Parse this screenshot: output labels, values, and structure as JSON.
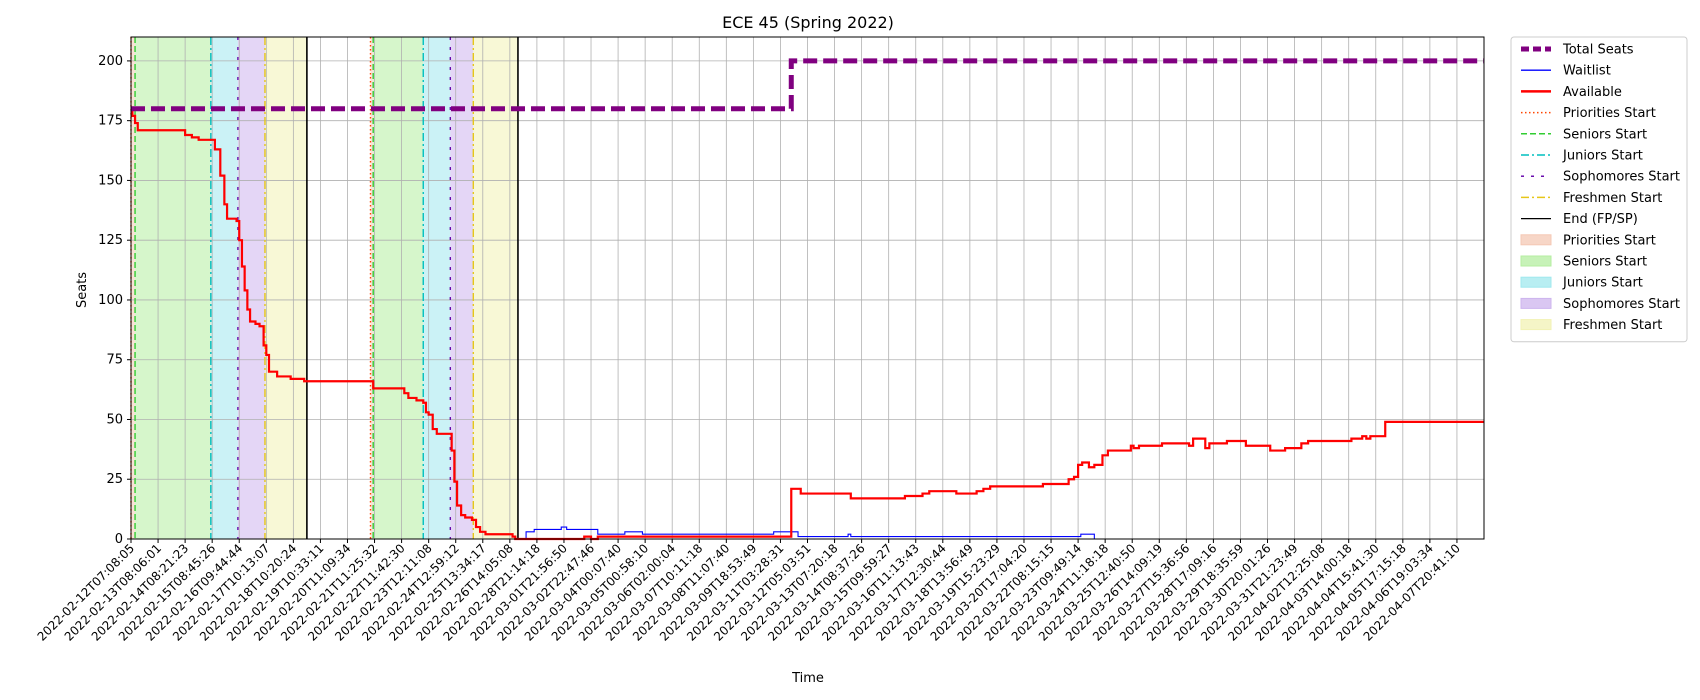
{
  "chart_data": {
    "type": "line",
    "title": "ECE 45 (Spring 2022)",
    "xlabel": "Time",
    "ylabel": "Seats",
    "xlim": [
      0,
      1000
    ],
    "ylim": [
      0,
      210
    ],
    "yticks": [
      0,
      25,
      50,
      75,
      100,
      125,
      150,
      175,
      200
    ],
    "grid": true,
    "legend_position": "outside-right",
    "xtick_labels": [
      "2022-02-12T07:08:05",
      "2022-02-13T08:06:01",
      "2022-02-14T08:21:23",
      "2022-02-15T08:45:26",
      "2022-02-16T09:44:44",
      "2022-02-17T10:13:07",
      "2022-02-18T10:20:24",
      "2022-02-19T10:33:11",
      "2022-02-20T11:09:34",
      "2022-02-21T11:25:32",
      "2022-02-22T11:42:30",
      "2022-02-23T12:11:08",
      "2022-02-24T12:59:12",
      "2022-02-25T13:34:17",
      "2022-02-26T14:05:08",
      "2022-02-28T21:14:18",
      "2022-03-01T21:56:50",
      "2022-03-02T22:47:46",
      "2022-03-04T00:07:40",
      "2022-03-05T00:58:10",
      "2022-03-06T02:00:04",
      "2022-03-07T10:11:18",
      "2022-03-08T11:07:40",
      "2022-03-09T18:53:49",
      "2022-03-11T03:28:31",
      "2022-03-12T05:03:51",
      "2022-03-13T07:20:18",
      "2022-03-14T08:37:26",
      "2022-03-15T09:59:27",
      "2022-03-16T11:13:43",
      "2022-03-17T12:30:44",
      "2022-03-18T13:56:49",
      "2022-03-19T15:23:29",
      "2022-03-20T17:04:20",
      "2022-03-22T08:15:15",
      "2022-03-23T09:49:14",
      "2022-03-24T11:18:18",
      "2022-03-25T12:40:50",
      "2022-03-26T14:09:19",
      "2022-03-27T15:36:56",
      "2022-03-28T17:09:16",
      "2022-03-29T18:35:59",
      "2022-03-30T20:01:26",
      "2022-03-31T21:23:49",
      "2022-04-02T12:25:08",
      "2022-04-03T14:00:18",
      "2022-04-04T15:41:30",
      "2022-04-05T17:15:18",
      "2022-04-06T19:03:34",
      "2022-04-07T20:41:10"
    ],
    "xtick_values": [
      0,
      20,
      40,
      60,
      80,
      100,
      120,
      140,
      160,
      180,
      200,
      220,
      240,
      260,
      280,
      300,
      320,
      340,
      360,
      380,
      400,
      420,
      440,
      460,
      480,
      500,
      520,
      540,
      560,
      580,
      600,
      620,
      640,
      660,
      680,
      700,
      720,
      740,
      760,
      780,
      800,
      820,
      840,
      860,
      880,
      900,
      920,
      940,
      960,
      980
    ],
    "legend": [
      {
        "label": "Total Seats",
        "kind": "line",
        "color": "#800080",
        "dash": "dashed-thick"
      },
      {
        "label": "Waitlist",
        "kind": "line",
        "color": "#0000ff",
        "dash": "solid"
      },
      {
        "label": "Available",
        "kind": "line",
        "color": "#ff0000",
        "dash": "solid-thick"
      },
      {
        "label": "Priorities Start",
        "kind": "line",
        "color": "#ff4500",
        "dash": "dotted"
      },
      {
        "label": "Seniors Start",
        "kind": "line",
        "color": "#32cd32",
        "dash": "dashed"
      },
      {
        "label": "Juniors Start",
        "kind": "line",
        "color": "#00bfbf",
        "dash": "dashdot"
      },
      {
        "label": "Sophomores Start",
        "kind": "line",
        "color": "#6a0dad",
        "dash": "loosedash"
      },
      {
        "label": "Freshmen Start",
        "kind": "line",
        "color": "#e6c619",
        "dash": "dashdot"
      },
      {
        "label": "End (FP/SP)",
        "kind": "line",
        "color": "#000000",
        "dash": "solid"
      },
      {
        "label": "Priorities Start",
        "kind": "patch",
        "color": "#f4c8b4"
      },
      {
        "label": "Seniors Start",
        "kind": "patch",
        "color": "#b4eea0"
      },
      {
        "label": "Juniors Start",
        "kind": "patch",
        "color": "#a0e8ee"
      },
      {
        "label": "Sophomores Start",
        "kind": "patch",
        "color": "#cdb4ee"
      },
      {
        "label": "Freshmen Start",
        "kind": "patch",
        "color": "#f2f2b4"
      }
    ],
    "phase_spans": [
      {
        "name": "Priorities Start",
        "x0": 0,
        "x1": 3,
        "color": "#f4c8b4",
        "line_color": "#ff4500",
        "dash": "dotted"
      },
      {
        "name": "Seniors Start",
        "x0": 3,
        "x1": 59,
        "color": "#b4eea0",
        "line_color": "#32cd32",
        "dash": "dashed"
      },
      {
        "name": "Juniors Start",
        "x0": 59,
        "x1": 79,
        "color": "#a0e8ee",
        "line_color": "#00bfbf",
        "dash": "dashdot"
      },
      {
        "name": "Sophomores Start",
        "x0": 79,
        "x1": 99,
        "color": "#cdb4ee",
        "line_color": "#6a0dad",
        "dash": "loosedash"
      },
      {
        "name": "Freshmen Start",
        "x0": 99,
        "x1": 130,
        "color": "#f2f2b4",
        "line_color": "#e6c619",
        "dash": "dashdot"
      },
      {
        "name": "Priorities Start",
        "x0": 177,
        "x1": 179,
        "color": "#f4c8b4",
        "line_color": "#ff4500",
        "dash": "dotted"
      },
      {
        "name": "Seniors Start",
        "x0": 179,
        "x1": 216,
        "color": "#b4eea0",
        "line_color": "#32cd32",
        "dash": "dashed"
      },
      {
        "name": "Juniors Start",
        "x0": 216,
        "x1": 236,
        "color": "#a0e8ee",
        "line_color": "#00bfbf",
        "dash": "dashdot"
      },
      {
        "name": "Sophomores Start",
        "x0": 236,
        "x1": 253,
        "color": "#cdb4ee",
        "line_color": "#6a0dad",
        "dash": "loosedash"
      },
      {
        "name": "Freshmen Start",
        "x0": 253,
        "x1": 286,
        "color": "#f2f2b4",
        "line_color": "#e6c619",
        "dash": "dashdot"
      }
    ],
    "end_lines": [
      130,
      286
    ],
    "series": [
      {
        "name": "Total Seats",
        "color": "#800080",
        "step": true,
        "points": [
          [
            0,
            180
          ],
          [
            486,
            180
          ],
          [
            488,
            200
          ],
          [
            1000,
            200
          ]
        ]
      },
      {
        "name": "Available",
        "color": "#ff0000",
        "step": true,
        "points": [
          [
            0,
            180
          ],
          [
            1,
            177
          ],
          [
            3,
            174
          ],
          [
            5,
            171
          ],
          [
            35,
            171
          ],
          [
            40,
            169
          ],
          [
            45,
            168
          ],
          [
            50,
            167
          ],
          [
            58,
            167
          ],
          [
            62,
            163
          ],
          [
            66,
            152
          ],
          [
            69,
            140
          ],
          [
            71,
            134
          ],
          [
            78,
            133
          ],
          [
            80,
            125
          ],
          [
            82,
            114
          ],
          [
            84,
            104
          ],
          [
            86,
            96
          ],
          [
            88,
            91
          ],
          [
            92,
            90
          ],
          [
            95,
            89
          ],
          [
            98,
            81
          ],
          [
            100,
            77
          ],
          [
            102,
            70
          ],
          [
            108,
            68
          ],
          [
            118,
            67
          ],
          [
            128,
            66
          ],
          [
            177,
            66
          ],
          [
            179,
            63
          ],
          [
            198,
            63
          ],
          [
            202,
            61
          ],
          [
            205,
            59
          ],
          [
            211,
            58
          ],
          [
            216,
            57
          ],
          [
            218,
            53
          ],
          [
            220,
            52
          ],
          [
            223,
            46
          ],
          [
            226,
            44
          ],
          [
            234,
            44
          ],
          [
            237,
            37
          ],
          [
            239,
            24
          ],
          [
            241,
            14
          ],
          [
            244,
            10
          ],
          [
            247,
            9
          ],
          [
            252,
            8
          ],
          [
            255,
            5
          ],
          [
            258,
            3
          ],
          [
            262,
            2
          ],
          [
            280,
            2
          ],
          [
            282,
            1
          ],
          [
            284,
            0
          ],
          [
            330,
            0
          ],
          [
            335,
            1
          ],
          [
            340,
            0
          ],
          [
            345,
            1
          ],
          [
            400,
            1
          ],
          [
            486,
            1
          ],
          [
            488,
            21
          ],
          [
            495,
            19
          ],
          [
            530,
            19
          ],
          [
            532,
            17
          ],
          [
            570,
            17
          ],
          [
            572,
            18
          ],
          [
            583,
            18
          ],
          [
            585,
            19
          ],
          [
            590,
            20
          ],
          [
            608,
            20
          ],
          [
            610,
            19
          ],
          [
            622,
            19
          ],
          [
            625,
            20
          ],
          [
            630,
            21
          ],
          [
            635,
            22
          ],
          [
            672,
            22
          ],
          [
            674,
            23
          ],
          [
            690,
            23
          ],
          [
            693,
            25
          ],
          [
            697,
            26
          ],
          [
            700,
            31
          ],
          [
            703,
            32
          ],
          [
            708,
            30
          ],
          [
            712,
            31
          ],
          [
            718,
            35
          ],
          [
            722,
            37
          ],
          [
            737,
            37
          ],
          [
            739,
            39
          ],
          [
            741,
            38
          ],
          [
            745,
            39
          ],
          [
            760,
            39
          ],
          [
            762,
            40
          ],
          [
            780,
            40
          ],
          [
            782,
            39
          ],
          [
            785,
            42
          ],
          [
            792,
            42
          ],
          [
            794,
            38
          ],
          [
            797,
            40
          ],
          [
            808,
            40
          ],
          [
            810,
            41
          ],
          [
            822,
            41
          ],
          [
            824,
            39
          ],
          [
            840,
            39
          ],
          [
            842,
            37
          ],
          [
            850,
            37
          ],
          [
            853,
            38
          ],
          [
            862,
            38
          ],
          [
            865,
            40
          ],
          [
            870,
            41
          ],
          [
            900,
            41
          ],
          [
            902,
            42
          ],
          [
            910,
            43
          ],
          [
            913,
            42
          ],
          [
            916,
            43
          ],
          [
            925,
            43
          ],
          [
            927,
            49
          ],
          [
            1000,
            49
          ]
        ]
      },
      {
        "name": "Waitlist",
        "color": "#0000ff",
        "step": true,
        "points": [
          [
            130,
            0
          ],
          [
            290,
            0
          ],
          [
            292,
            3
          ],
          [
            298,
            4
          ],
          [
            315,
            4
          ],
          [
            318,
            5
          ],
          [
            322,
            4
          ],
          [
            340,
            4
          ],
          [
            345,
            2
          ],
          [
            360,
            2
          ],
          [
            365,
            3
          ],
          [
            375,
            3
          ],
          [
            378,
            2
          ],
          [
            473,
            2
          ],
          [
            475,
            3
          ],
          [
            490,
            3
          ],
          [
            493,
            1
          ],
          [
            528,
            1
          ],
          [
            530,
            2
          ],
          [
            532,
            1
          ],
          [
            700,
            1
          ],
          [
            702,
            2
          ],
          [
            710,
            2
          ],
          [
            712,
            0
          ],
          [
            1000,
            0
          ]
        ]
      }
    ]
  }
}
